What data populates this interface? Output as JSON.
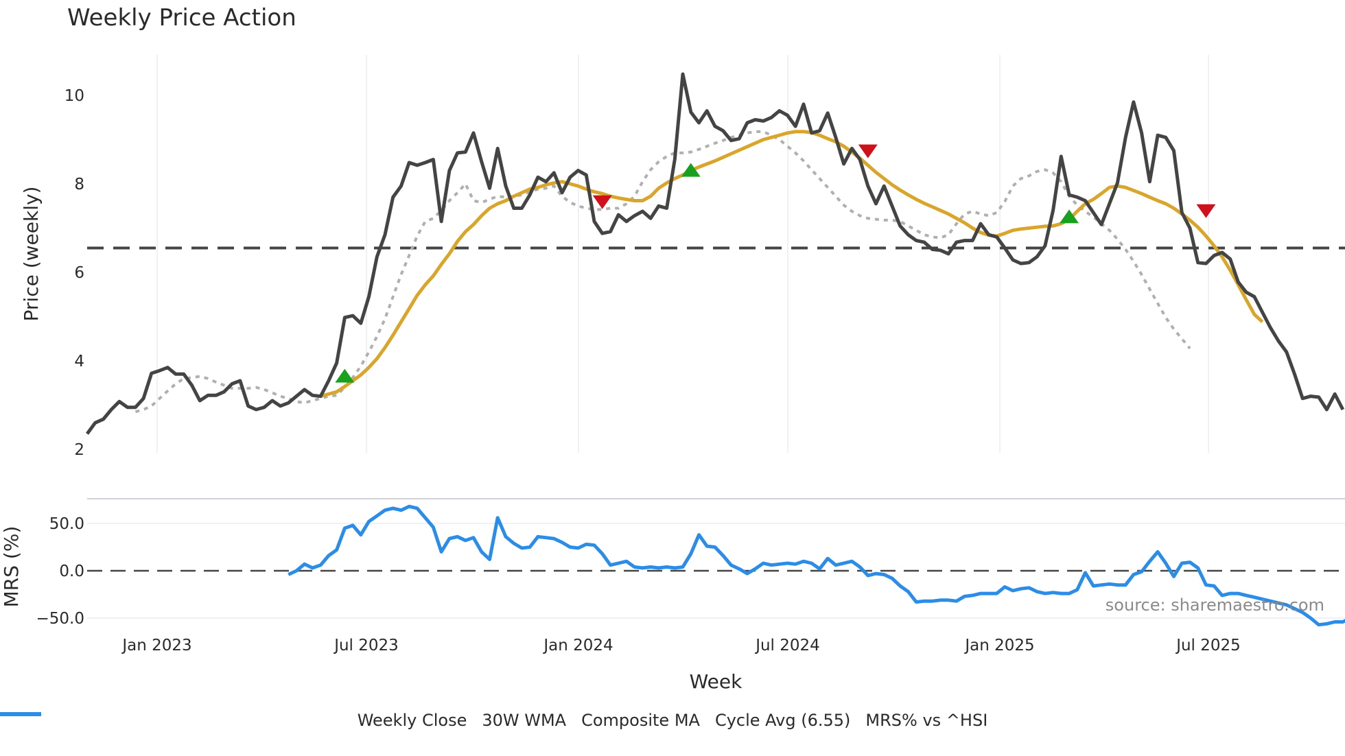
{
  "title": "Weekly Price Action",
  "chart_data": [
    {
      "type": "line",
      "title": "Weekly Price Action",
      "xlabel": "Week",
      "ylabel": "Price (weekly)",
      "ylim": [
        2,
        10.8
      ],
      "yticks": [
        "2",
        "4",
        "6",
        "8",
        "10"
      ],
      "x_tick_labels": [
        "Jan 2023",
        "Jul 2023",
        "Jan 2024",
        "Jul 2024",
        "Jan 2025",
        "Jul 2025"
      ],
      "x_start": "2022-11 (weekly)",
      "grid": "vertical gridlines",
      "cycle_avg": 6.55,
      "series": [
        {
          "name": "Weekly Close",
          "color": "#444444",
          "style": "solid",
          "values": [
            2.35,
            2.6,
            2.68,
            2.9,
            3.08,
            2.95,
            2.95,
            3.15,
            3.72,
            3.78,
            3.85,
            3.7,
            3.7,
            3.45,
            3.1,
            3.22,
            3.22,
            3.3,
            3.48,
            3.55,
            2.98,
            2.9,
            2.95,
            3.1,
            2.98,
            3.05,
            3.2,
            3.35,
            3.22,
            3.2,
            3.55,
            3.95,
            4.98,
            5.02,
            4.85,
            5.45,
            6.35,
            6.85,
            7.7,
            7.95,
            8.48,
            8.42,
            8.48,
            8.55,
            7.15,
            8.3,
            8.7,
            8.72,
            9.15,
            8.5,
            7.9,
            8.8,
            7.95,
            7.45,
            7.45,
            7.75,
            8.15,
            8.05,
            8.25,
            7.8,
            8.15,
            8.3,
            8.2,
            7.15,
            6.88,
            6.92,
            7.3,
            7.15,
            7.28,
            7.38,
            7.22,
            7.5,
            7.45,
            8.55,
            10.48,
            9.62,
            9.38,
            9.65,
            9.3,
            9.2,
            8.98,
            9.02,
            9.38,
            9.45,
            9.42,
            9.5,
            9.65,
            9.55,
            9.3,
            9.8,
            9.15,
            9.2,
            9.6,
            9.05,
            8.45,
            8.8,
            8.55,
            7.95,
            7.55,
            7.95,
            7.5,
            7.05,
            6.85,
            6.72,
            6.68,
            6.52,
            6.5,
            6.42,
            6.68,
            6.72,
            6.72,
            7.1,
            6.85,
            6.8,
            6.55,
            6.28,
            6.2,
            6.22,
            6.35,
            6.6,
            7.4,
            8.62,
            7.75,
            7.7,
            7.62,
            7.35,
            7.08,
            7.55,
            8.02,
            9.05,
            9.85,
            9.15,
            8.05,
            9.1,
            9.05,
            8.75,
            7.35,
            7.0,
            6.22,
            6.2,
            6.38,
            6.45,
            6.3,
            5.78,
            5.55,
            5.45,
            5.1,
            4.75,
            4.45,
            4.2,
            3.7,
            3.15,
            3.2,
            3.18,
            2.9,
            3.25,
            2.9
          ]
        },
        {
          "name": "30W WMA",
          "color": "#d9a52b",
          "style": "solid",
          "start_index": 29,
          "values": [
            3.2,
            3.25,
            3.3,
            3.42,
            3.55,
            3.68,
            3.85,
            4.05,
            4.3,
            4.58,
            4.88,
            5.18,
            5.48,
            5.72,
            5.92,
            6.18,
            6.42,
            6.7,
            6.92,
            7.08,
            7.28,
            7.45,
            7.55,
            7.62,
            7.72,
            7.8,
            7.88,
            7.92,
            7.98,
            8.02,
            8.05,
            8.0,
            7.95,
            7.88,
            7.82,
            7.78,
            7.72,
            7.68,
            7.65,
            7.62,
            7.62,
            7.72,
            7.9,
            8.02,
            8.12,
            8.2,
            8.3,
            8.38,
            8.45,
            8.52,
            8.6,
            8.68,
            8.76,
            8.84,
            8.92,
            9.0,
            9.05,
            9.1,
            9.15,
            9.18,
            9.18,
            9.16,
            9.1,
            9.02,
            8.95,
            8.85,
            8.72,
            8.58,
            8.42,
            8.26,
            8.12,
            7.98,
            7.86,
            7.75,
            7.65,
            7.56,
            7.48,
            7.4,
            7.32,
            7.22,
            7.12,
            7.0,
            6.9,
            6.84,
            6.82,
            6.88,
            6.95,
            6.98,
            7.0,
            7.02,
            7.04,
            7.05,
            7.1,
            7.2,
            7.38,
            7.55,
            7.65,
            7.78,
            7.92,
            7.95,
            7.92,
            7.85,
            7.78,
            7.7,
            7.62,
            7.55,
            7.45,
            7.32,
            7.18,
            7.02,
            6.82,
            6.6,
            6.35,
            6.05,
            5.72,
            5.38,
            5.05,
            4.88
          ]
        },
        {
          "name": "Composite MA",
          "color": "#b0b0b0",
          "style": "dotted",
          "start_index": 6,
          "values": [
            2.85,
            2.9,
            2.98,
            3.15,
            3.32,
            3.48,
            3.6,
            3.62,
            3.65,
            3.6,
            3.52,
            3.45,
            3.38,
            3.38,
            3.38,
            3.4,
            3.35,
            3.28,
            3.2,
            3.15,
            3.08,
            3.05,
            3.1,
            3.15,
            3.2,
            3.22,
            3.4,
            3.62,
            3.88,
            4.2,
            4.55,
            4.95,
            5.45,
            5.95,
            6.38,
            6.82,
            7.15,
            7.22,
            7.4,
            7.62,
            7.8,
            8.0,
            7.62,
            7.58,
            7.65,
            7.72,
            7.7,
            7.72,
            7.75,
            7.82,
            7.88,
            7.9,
            7.95,
            7.72,
            7.58,
            7.5,
            7.45,
            7.42,
            7.42,
            7.45,
            7.45,
            7.55,
            7.72,
            8.05,
            8.32,
            8.5,
            8.62,
            8.7,
            8.7,
            8.72,
            8.78,
            8.85,
            8.92,
            8.98,
            9.05,
            9.1,
            9.15,
            9.18,
            9.18,
            9.1,
            9.0,
            8.85,
            8.7,
            8.52,
            8.32,
            8.12,
            7.92,
            7.72,
            7.52,
            7.38,
            7.28,
            7.22,
            7.2,
            7.18,
            7.18,
            7.15,
            7.05,
            6.95,
            6.85,
            6.8,
            6.78,
            6.85,
            7.1,
            7.32,
            7.38,
            7.32,
            7.28,
            7.35,
            7.6,
            7.95,
            8.12,
            8.18,
            8.28,
            8.32,
            8.25,
            8.05,
            7.72,
            7.52,
            7.38,
            7.25,
            7.1,
            6.95,
            6.75,
            6.52,
            6.25,
            5.95,
            5.62,
            5.3,
            4.98,
            4.72,
            4.5,
            4.28
          ]
        },
        {
          "name": "Cycle Avg (6.55)",
          "color": "#444444",
          "style": "dashed",
          "value": 6.55
        }
      ],
      "signals": [
        {
          "type": "buy",
          "color": "#17a11c",
          "index": 32,
          "value": 3.65
        },
        {
          "type": "sell",
          "color": "#d0111b",
          "index": 64,
          "value": 7.6
        },
        {
          "type": "buy",
          "color": "#17a11c",
          "index": 75,
          "value": 8.3
        },
        {
          "type": "sell",
          "color": "#d0111b",
          "index": 97,
          "value": 8.75
        },
        {
          "type": "buy",
          "color": "#17a11c",
          "index": 122,
          "value": 7.25
        },
        {
          "type": "sell",
          "color": "#d0111b",
          "index": 139,
          "value": 7.4
        }
      ]
    },
    {
      "type": "line",
      "title": "",
      "xlabel": "Week",
      "ylabel": "MRS (%)",
      "yticks": [
        "50.0",
        "0.0",
        "−50.0"
      ],
      "ylim": [
        -70,
        78
      ],
      "zero_line": 0,
      "series": [
        {
          "name": "MRS% vs ^HSI",
          "color": "#2b8de8",
          "style": "solid",
          "start_index": 25,
          "values": [
            -4,
            0,
            7,
            3,
            6,
            16,
            22,
            45,
            48,
            38,
            52,
            58,
            64,
            66,
            64,
            68,
            66,
            56,
            46,
            20,
            34,
            36,
            32,
            35,
            20,
            12,
            56,
            36,
            29,
            24,
            25,
            36,
            35,
            34,
            30,
            25,
            24,
            28,
            27,
            18,
            6,
            8,
            10,
            4,
            3,
            4,
            3,
            4,
            3,
            4,
            18,
            38,
            26,
            25,
            16,
            6,
            2,
            -3,
            2,
            8,
            6,
            7,
            8,
            7,
            10,
            8,
            2,
            13,
            6,
            8,
            10,
            4,
            -5,
            -3,
            -4,
            -8,
            -16,
            -22,
            -33,
            -32,
            -32,
            -31,
            -31,
            -32,
            -27,
            -26,
            -24,
            -24,
            -24,
            -17,
            -21,
            -19,
            -18,
            -22,
            -24,
            -23,
            -24,
            -24,
            -20,
            -2,
            -16,
            -15,
            -14,
            -15,
            -15,
            -4,
            -1,
            10,
            20,
            8,
            -6,
            8,
            9,
            3,
            -15,
            -16,
            -26,
            -24,
            -24,
            -26,
            -28,
            -30,
            -32,
            -34,
            -36,
            -40,
            -44,
            -50,
            -57,
            -56,
            -54,
            -54,
            -50,
            -54
          ]
        }
      ]
    }
  ],
  "annotation": "source: sharemaestro.com",
  "legend": [
    {
      "label": "Weekly Close",
      "color": "#444444",
      "style": "solid"
    },
    {
      "label": "30W WMA",
      "color": "#d9a52b",
      "style": "solid"
    },
    {
      "label": "Composite MA",
      "color": "#b0b0b0",
      "style": "dotted"
    },
    {
      "label": "Cycle Avg (6.55)",
      "color": "#555555",
      "style": "dashed"
    },
    {
      "label": "MRS% vs ^HSI",
      "color": "#2b8de8",
      "style": "solid"
    }
  ]
}
